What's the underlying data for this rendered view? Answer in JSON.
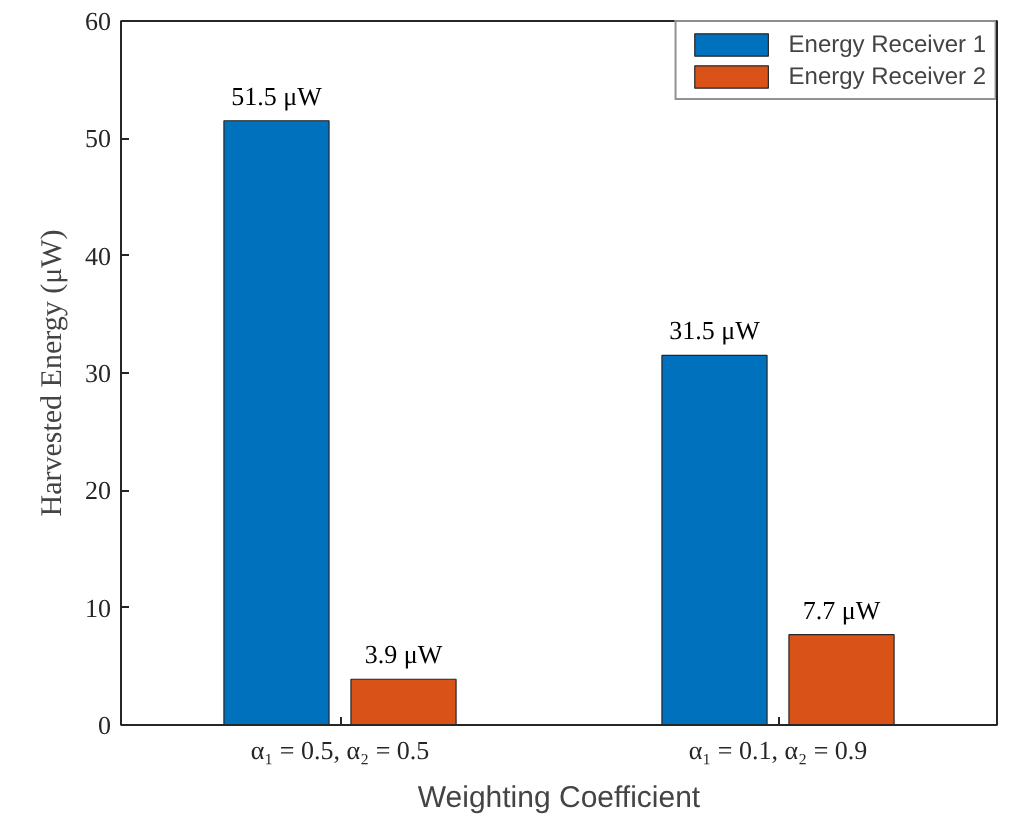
{
  "chart_data": {
    "type": "bar",
    "categories": [
      "α₁ = 0.5, α₂ = 0.5",
      "α₁ = 0.1, α₂ = 0.9"
    ],
    "series": [
      {
        "name": "Energy Receiver 1",
        "color": "#0072bd",
        "values": [
          51.5,
          31.5
        ],
        "value_labels": [
          "51.5 μW",
          "31.5 μW"
        ]
      },
      {
        "name": "Energy Receiver 2",
        "color": "#d95319",
        "values": [
          3.9,
          7.7
        ],
        "value_labels": [
          "3.9 μW",
          "7.7 μW"
        ]
      }
    ],
    "xlabel": "Weighting Coefficient",
    "ylabel": "Harvested Energy (μW)",
    "ylim": [
      0,
      60
    ],
    "yticks": [
      0,
      10,
      20,
      30,
      40,
      50,
      60
    ],
    "grid": false,
    "legend": "top right"
  }
}
